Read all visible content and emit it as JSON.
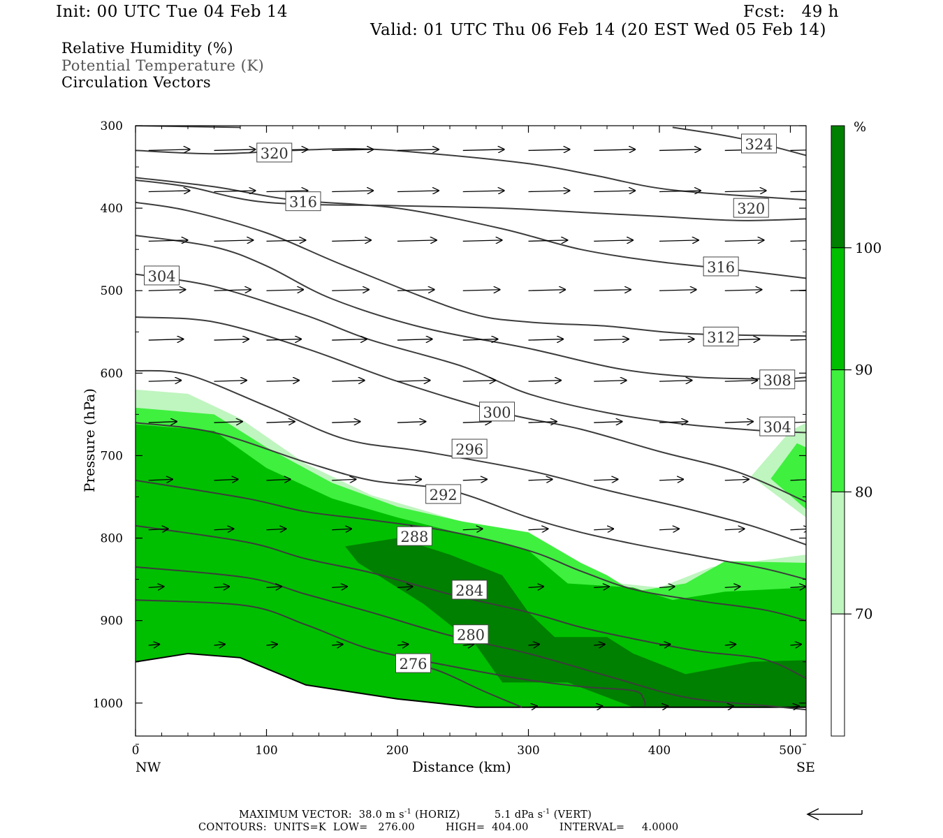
{
  "header": {
    "init": "Init: 00 UTC Tue 04 Feb 14",
    "fcst": "Fcst:   49 h",
    "valid": "Valid: 01 UTC Thu 06 Feb 14 (20 EST Wed 05 Feb 14)"
  },
  "fields": [
    "Relative Humidity (%)",
    "Potential Temperature (K)",
    "Circulation Vectors"
  ],
  "colors": {
    "rh70": "#bff5bf",
    "rh80": "#3ff03f",
    "rh90": "#00bf00",
    "rh100": "#008000",
    "contour": "#3c3c3c"
  },
  "footer": {
    "line1a": "MAXIMUM VECTOR:  38.0 m s",
    "line1b": "(HORIZ)",
    "line1c": "5.1 dPa s",
    "line1d": "(VERT)",
    "exp": "-1",
    "line2": "CONTOURS:  UNITS=K  LOW=   276.00         HIGH=  404.00         INTERVAL=     4.0000"
  },
  "chart_data": {
    "type": "contour-cross-section",
    "xlabel": "Distance (km)",
    "ylabel": "Pressure (hPa)",
    "xlim": [
      0,
      512
    ],
    "ylim": [
      1040,
      300
    ],
    "x_ticks": [
      0,
      100,
      200,
      300,
      400,
      500
    ],
    "y_ticks": [
      300,
      400,
      500,
      600,
      700,
      800,
      900,
      1000
    ],
    "x_end_labels": [
      "NW",
      "SE"
    ],
    "colorbar": {
      "unit": "%",
      "levels": [
        70,
        80,
        90,
        100
      ]
    },
    "theta_contours": [
      {
        "value": 276,
        "label": "276",
        "points": [
          [
            200,
            950
          ],
          [
            230,
            960
          ],
          [
            265,
            985
          ],
          [
            295,
            1005
          ]
        ]
      },
      {
        "value": 280,
        "label": "280",
        "points": [
          [
            0,
            875
          ],
          [
            85,
            882
          ],
          [
            130,
            905
          ],
          [
            180,
            935
          ],
          [
            240,
            955
          ],
          [
            300,
            972
          ],
          [
            340,
            980
          ],
          [
            380,
            985
          ],
          [
            388,
            995
          ],
          [
            389,
            1003
          ]
        ]
      },
      {
        "value": 284,
        "label": "284",
        "points": [
          [
            0,
            835
          ],
          [
            85,
            848
          ],
          [
            130,
            868
          ],
          [
            180,
            890
          ],
          [
            240,
            918
          ],
          [
            300,
            940
          ],
          [
            360,
            967
          ],
          [
            420,
            993
          ],
          [
            480,
            1003
          ],
          [
            512,
            1008
          ]
        ]
      },
      {
        "value": "",
        "points": [
          [
            0,
            785
          ],
          [
            85,
            805
          ],
          [
            130,
            825
          ],
          [
            180,
            842
          ],
          [
            240,
            868
          ],
          [
            300,
            890
          ],
          [
            340,
            908
          ],
          [
            380,
            922
          ],
          [
            430,
            937
          ],
          [
            480,
            947
          ],
          [
            512,
            970
          ]
        ]
      },
      {
        "value": 288,
        "label": "288",
        "points": [
          [
            0,
            730
          ],
          [
            85,
            752
          ],
          [
            130,
            768
          ],
          [
            180,
            778
          ],
          [
            240,
            792
          ],
          [
            300,
            815
          ],
          [
            340,
            840
          ],
          [
            380,
            862
          ],
          [
            430,
            876
          ],
          [
            480,
            887
          ],
          [
            512,
            900
          ]
        ]
      },
      {
        "value": 292,
        "label": "292",
        "points": [
          [
            0,
            660
          ],
          [
            60,
            672
          ],
          [
            130,
            708
          ],
          [
            180,
            730
          ],
          [
            240,
            742
          ],
          [
            300,
            775
          ],
          [
            340,
            793
          ],
          [
            380,
            807
          ],
          [
            430,
            822
          ],
          [
            480,
            837
          ],
          [
            512,
            850
          ]
        ]
      },
      {
        "value": 296,
        "label": "296",
        "points": [
          [
            0,
            597
          ],
          [
            40,
            602
          ],
          [
            100,
            640
          ],
          [
            160,
            680
          ],
          [
            220,
            695
          ],
          [
            300,
            718
          ],
          [
            360,
            742
          ],
          [
            420,
            764
          ],
          [
            470,
            785
          ],
          [
            512,
            808
          ]
        ]
      },
      {
        "value": 300,
        "label": "300",
        "points": [
          [
            0,
            532
          ],
          [
            60,
            538
          ],
          [
            130,
            570
          ],
          [
            200,
            610
          ],
          [
            280,
            648
          ],
          [
            340,
            668
          ],
          [
            400,
            695
          ],
          [
            460,
            720
          ],
          [
            512,
            756
          ]
        ]
      },
      {
        "value": 304,
        "label": "304",
        "points": [
          [
            0,
            480
          ],
          [
            60,
            495
          ],
          [
            130,
            530
          ],
          [
            180,
            560
          ],
          [
            250,
            592
          ],
          [
            300,
            625
          ],
          [
            360,
            648
          ],
          [
            420,
            662
          ],
          [
            480,
            670
          ],
          [
            512,
            672
          ]
        ]
      },
      {
        "value": 308,
        "label": "308",
        "points": [
          [
            0,
            433
          ],
          [
            60,
            447
          ],
          [
            100,
            470
          ],
          [
            150,
            510
          ],
          [
            220,
            545
          ],
          [
            300,
            570
          ],
          [
            370,
            595
          ],
          [
            430,
            605
          ],
          [
            490,
            607
          ],
          [
            512,
            605
          ]
        ]
      },
      {
        "value": 312,
        "label": "312",
        "points": [
          [
            0,
            393
          ],
          [
            40,
            403
          ],
          [
            100,
            430
          ],
          [
            160,
            470
          ],
          [
            250,
            525
          ],
          [
            300,
            538
          ],
          [
            360,
            543
          ],
          [
            420,
            552
          ],
          [
            512,
            555
          ]
        ]
      },
      {
        "value": 316,
        "label": "316",
        "points": [
          [
            0,
            363
          ],
          [
            60,
            374
          ],
          [
            120,
            390
          ],
          [
            200,
            400
          ],
          [
            280,
            425
          ],
          [
            340,
            450
          ],
          [
            400,
            465
          ],
          [
            460,
            475
          ],
          [
            512,
            485
          ]
        ]
      },
      {
        "value": 320,
        "label": "320",
        "points": [
          [
            0,
            366
          ],
          [
            40,
            374
          ],
          [
            100,
            393
          ],
          [
            200,
            397
          ],
          [
            280,
            400
          ],
          [
            340,
            405
          ],
          [
            400,
            410
          ],
          [
            460,
            415
          ],
          [
            512,
            413
          ]
        ]
      },
      {
        "value": 320,
        "label": "320",
        "points": [
          [
            0,
            330
          ],
          [
            60,
            334
          ],
          [
            120,
            330
          ],
          [
            170,
            328
          ],
          [
            220,
            333
          ],
          [
            300,
            346
          ],
          [
            350,
            360
          ],
          [
            410,
            378
          ],
          [
            512,
            390
          ]
        ]
      },
      {
        "value": 324,
        "label": "324",
        "points": [
          [
            0,
            300
          ],
          [
            80,
            302
          ]
        ]
      },
      {
        "value": 324,
        "label": "",
        "points": [
          [
            410,
            302
          ],
          [
            460,
            315
          ],
          [
            512,
            336
          ]
        ]
      }
    ],
    "rh_regions": [
      {
        "level": 70,
        "points": [
          [
            0,
            620
          ],
          [
            40,
            625
          ],
          [
            80,
            655
          ],
          [
            130,
            710
          ],
          [
            180,
            748
          ],
          [
            215,
            764
          ],
          [
            270,
            790
          ],
          [
            330,
            840
          ],
          [
            370,
            855
          ],
          [
            400,
            860
          ],
          [
            440,
            835
          ],
          [
            512,
            820
          ],
          [
            512,
            1005
          ],
          [
            0,
            1005
          ]
        ]
      },
      {
        "level": 80,
        "points": [
          [
            0,
            642
          ],
          [
            60,
            650
          ],
          [
            100,
            690
          ],
          [
            150,
            733
          ],
          [
            200,
            762
          ],
          [
            250,
            780
          ],
          [
            300,
            793
          ],
          [
            340,
            830
          ],
          [
            360,
            845
          ],
          [
            380,
            865
          ],
          [
            420,
            855
          ],
          [
            450,
            828
          ],
          [
            512,
            830
          ],
          [
            512,
            1005
          ],
          [
            0,
            1005
          ]
        ]
      },
      {
        "level": 90,
        "points": [
          [
            0,
            662
          ],
          [
            60,
            670
          ],
          [
            100,
            715
          ],
          [
            150,
            752
          ],
          [
            200,
            775
          ],
          [
            250,
            795
          ],
          [
            300,
            815
          ],
          [
            330,
            855
          ],
          [
            380,
            860
          ],
          [
            410,
            875
          ],
          [
            450,
            865
          ],
          [
            512,
            860
          ],
          [
            512,
            1005
          ],
          [
            0,
            1005
          ]
        ]
      },
      {
        "level": 100,
        "points": [
          [
            160,
            810
          ],
          [
            200,
            800
          ],
          [
            240,
            820
          ],
          [
            280,
            845
          ],
          [
            300,
            890
          ],
          [
            320,
            920
          ],
          [
            360,
            920
          ],
          [
            380,
            940
          ],
          [
            420,
            965
          ],
          [
            470,
            950
          ],
          [
            512,
            948
          ],
          [
            512,
            1005
          ],
          [
            380,
            1005
          ],
          [
            330,
            975
          ],
          [
            280,
            975
          ],
          [
            260,
            930
          ],
          [
            220,
            880
          ],
          [
            170,
            830
          ]
        ]
      },
      {
        "level": 70,
        "points": [
          [
            470,
            725
          ],
          [
            500,
            670
          ],
          [
            512,
            660
          ],
          [
            512,
            775
          ]
        ]
      },
      {
        "level": 80,
        "points": [
          [
            485,
            728
          ],
          [
            505,
            685
          ],
          [
            512,
            690
          ],
          [
            512,
            765
          ]
        ]
      }
    ],
    "wind_vectors": [
      {
        "p": 330,
        "u": 38,
        "x": [
          10,
          60,
          100,
          150,
          200,
          250,
          300,
          350,
          400,
          450,
          500
        ]
      },
      {
        "p": 380,
        "u": 38,
        "x": [
          10,
          60,
          100,
          150,
          200,
          250,
          300,
          350,
          400,
          450,
          500
        ]
      },
      {
        "p": 440,
        "u": 36,
        "x": [
          10,
          60,
          100,
          150,
          200,
          250,
          300,
          350,
          400,
          450,
          500
        ]
      },
      {
        "p": 500,
        "u": 34,
        "x": [
          10,
          60,
          100,
          150,
          200,
          250,
          300,
          350,
          400,
          450,
          500
        ]
      },
      {
        "p": 560,
        "u": 32,
        "x": [
          10,
          60,
          100,
          150,
          200,
          250,
          300,
          350,
          400,
          450,
          500
        ]
      },
      {
        "p": 610,
        "u": 30,
        "x": [
          10,
          60,
          100,
          150,
          200,
          250,
          300,
          350,
          400,
          450,
          500
        ]
      },
      {
        "p": 660,
        "u": 26,
        "x": [
          10,
          60,
          100,
          150,
          200,
          250,
          300,
          350,
          400,
          450,
          500
        ]
      },
      {
        "p": 730,
        "u": 22,
        "x": [
          10,
          60,
          100,
          150,
          200,
          250,
          300,
          350,
          400,
          450,
          500
        ]
      },
      {
        "p": 790,
        "u": 18,
        "x": [
          10,
          60,
          100,
          150,
          200,
          250,
          300,
          350,
          400,
          450,
          500
        ]
      },
      {
        "p": 860,
        "u": 14,
        "x": [
          10,
          60,
          100,
          150,
          200,
          250,
          300,
          350,
          400,
          450,
          500
        ]
      },
      {
        "p": 930,
        "u": 10,
        "x": [
          10,
          60,
          100,
          150,
          200,
          250,
          300,
          350,
          400,
          450,
          500
        ]
      },
      {
        "p": 1005,
        "u": 8,
        "x": [
          300,
          350,
          400,
          450,
          500
        ]
      }
    ]
  }
}
